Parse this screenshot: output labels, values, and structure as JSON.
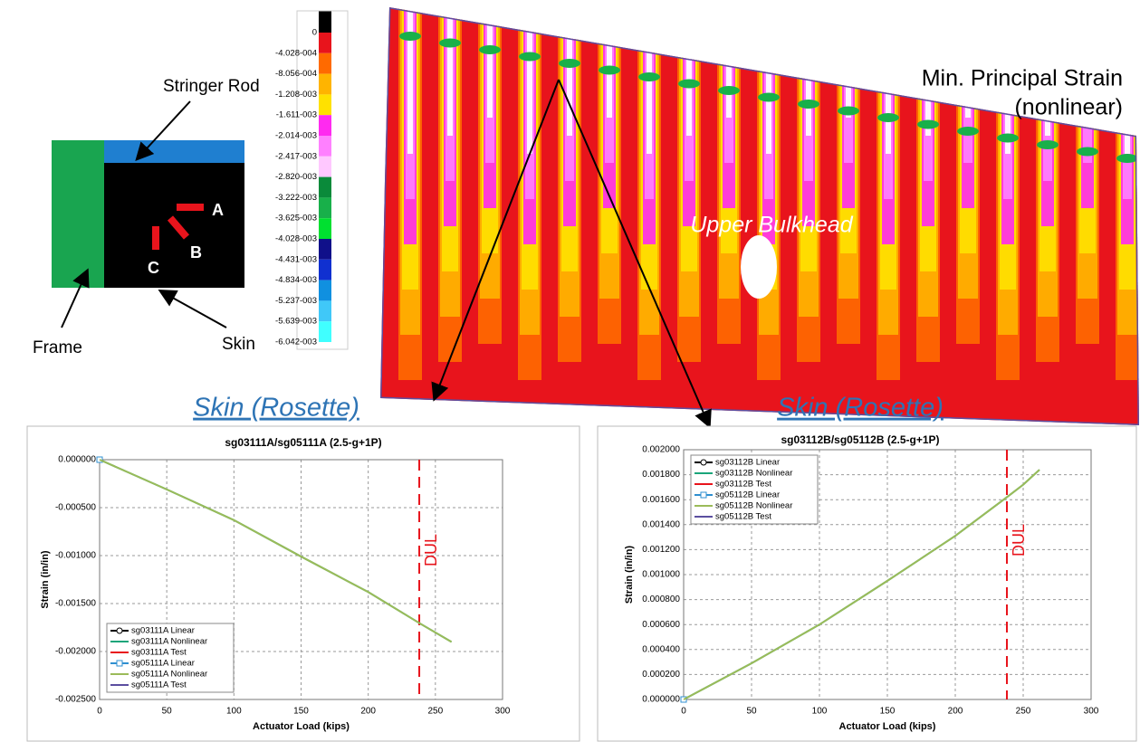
{
  "diagram": {
    "stringer": "Stringer Rod",
    "frame": "Frame",
    "skin": "Skin",
    "gauges": [
      "A",
      "B",
      "C"
    ]
  },
  "colorbar": {
    "labels": [
      "0",
      "-4.028-004",
      "-8.056-004",
      "-1.208-003",
      "-1.611-003",
      "-2.014-003",
      "-2.417-003",
      "-2.820-003",
      "-3.222-003",
      "-3.625-003",
      "-4.028-003",
      "-4.431-003",
      "-4.834-003",
      "-5.237-003",
      "-5.639-003",
      "-6.042-003"
    ],
    "colors": [
      "#000000",
      "#e8141c",
      "#ff6a00",
      "#ffb400",
      "#ffe100",
      "#ff2af0",
      "#ff80ff",
      "#ffc8ff",
      "#0a8a3a",
      "#18b04a",
      "#00e030",
      "#10108a",
      "#1030d0",
      "#1090e0",
      "#40c8f8",
      "#40ffff"
    ]
  },
  "contour": {
    "title": "Min. Principal Strain",
    "subtitle": "(nonlinear)",
    "region": "Upper Bulkhead"
  },
  "headers": [
    "Skin (Rosette)",
    "Skin (Rosette)"
  ],
  "chart_data": [
    {
      "type": "line",
      "title": "sg03111A/sg05111A (2.5-g+1P)",
      "x_label": "Actuator Load (kips)",
      "y_label": "Strain (in/in)",
      "xlim": [
        0,
        300
      ],
      "xticks": [
        0,
        50,
        100,
        150,
        200,
        250,
        300
      ],
      "ylim": [
        -0.0025,
        0
      ],
      "yticks": [
        {
          "value": -0.0025,
          "label": "-0.002500"
        },
        {
          "value": -0.002,
          "label": "-0.002000"
        },
        {
          "value": -0.0015,
          "label": "-0.001500"
        },
        {
          "value": -0.001,
          "label": "-0.001000"
        },
        {
          "value": -0.0005,
          "label": "-0.000500"
        },
        {
          "value": 0,
          "label": "0.000000"
        }
      ],
      "grid": true,
      "legend": "lower left",
      "annotation": {
        "text": "DUL",
        "x": 238,
        "color": "#e8141c"
      },
      "series": [
        {
          "name": "sg03111A Linear",
          "color": "#000000",
          "marker": "circle",
          "x": [
            0
          ],
          "values": [
            0
          ]
        },
        {
          "name": "sg03111A Nonlinear",
          "color": "#1aa57a",
          "x": [
            0,
            50,
            100,
            150,
            200,
            240,
            262
          ],
          "values": [
            0,
            -0.00031,
            -0.00063,
            -0.00101,
            -0.00138,
            -0.00172,
            -0.0019
          ]
        },
        {
          "name": "sg03111A Test",
          "color": "#e8141c",
          "x": [],
          "values": []
        },
        {
          "name": "sg05111A Linear",
          "color": "#2f8fd0",
          "marker": "square",
          "x": [
            0
          ],
          "values": [
            0
          ]
        },
        {
          "name": "sg05111A Nonlinear",
          "color": "#9bbb59",
          "x": [
            0,
            50,
            100,
            150,
            200,
            240,
            262
          ],
          "values": [
            0,
            -0.00031,
            -0.00063,
            -0.00101,
            -0.00138,
            -0.00172,
            -0.0019
          ]
        },
        {
          "name": "sg05111A Test",
          "color": "#5b4ea0",
          "x": [],
          "values": []
        }
      ]
    },
    {
      "type": "line",
      "title": "sg03112B/sg05112B (2.5-g+1P)",
      "x_label": "Actuator Load (kips)",
      "y_label": "Strain (in/in)",
      "xlim": [
        0,
        300
      ],
      "xticks": [
        0,
        50,
        100,
        150,
        200,
        250,
        300
      ],
      "ylim": [
        0,
        0.002
      ],
      "yticks": [
        {
          "value": 0,
          "label": "0.000000"
        },
        {
          "value": 0.0002,
          "label": "0.000200"
        },
        {
          "value": 0.0004,
          "label": "0.000400"
        },
        {
          "value": 0.0006,
          "label": "0.000600"
        },
        {
          "value": 0.0008,
          "label": "0.000800"
        },
        {
          "value": 0.001,
          "label": "0.001000"
        },
        {
          "value": 0.0012,
          "label": "0.001200"
        },
        {
          "value": 0.0014,
          "label": "0.001400"
        },
        {
          "value": 0.0016,
          "label": "0.001600"
        },
        {
          "value": 0.0018,
          "label": "0.001800"
        },
        {
          "value": 0.002,
          "label": "0.002000"
        }
      ],
      "grid": true,
      "legend": "upper left",
      "annotation": {
        "text": "DUL",
        "x": 238,
        "color": "#e8141c"
      },
      "series": [
        {
          "name": "sg03112B Linear",
          "color": "#000000",
          "marker": "circle",
          "x": [
            0
          ],
          "values": [
            0
          ]
        },
        {
          "name": "sg03112B Nonlinear",
          "color": "#1aa57a",
          "x": [
            0,
            50,
            100,
            150,
            200,
            238,
            250,
            262
          ],
          "values": [
            0,
            0.00029,
            0.0006,
            0.00095,
            0.00131,
            0.00162,
            0.00172,
            0.00184
          ]
        },
        {
          "name": "sg03112B Test",
          "color": "#e8141c",
          "x": [],
          "values": []
        },
        {
          "name": "sg05112B Linear",
          "color": "#2f8fd0",
          "marker": "square",
          "x": [
            0
          ],
          "values": [
            0
          ]
        },
        {
          "name": "sg05112B Nonlinear",
          "color": "#9bbb59",
          "x": [
            0,
            50,
            100,
            150,
            200,
            238,
            250,
            262
          ],
          "values": [
            0,
            0.00029,
            0.0006,
            0.00095,
            0.00131,
            0.00162,
            0.00172,
            0.00184
          ]
        },
        {
          "name": "sg05112B Test",
          "color": "#5b4ea0",
          "x": [],
          "values": []
        }
      ]
    }
  ]
}
